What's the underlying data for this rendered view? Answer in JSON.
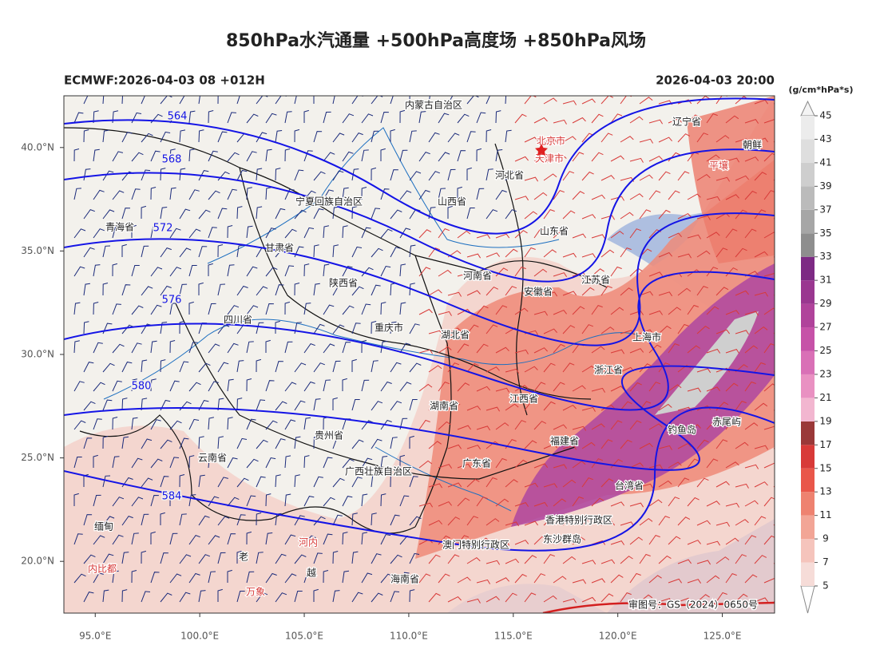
{
  "header": {
    "title": "850hPa水汽通量 +500hPa高度场 +850hPa风场",
    "run": "ECMWF:2026-04-03 08 +012H",
    "valid": "2026-04-03 20:00",
    "unit": "(g/cm*hPa*s)",
    "footer": "审图号：GS（2024）0650号"
  },
  "axes": {
    "lon_lim": [
      93.5,
      127.5
    ],
    "lat_lim": [
      17.5,
      42.5
    ],
    "lon_ticks": [
      {
        "value": 95,
        "label": "95.0°E"
      },
      {
        "value": 100,
        "label": "100.0°E"
      },
      {
        "value": 105,
        "label": "105.0°E"
      },
      {
        "value": 110,
        "label": "110.0°E"
      },
      {
        "value": 115,
        "label": "115.0°E"
      },
      {
        "value": 120,
        "label": "120.0°E"
      },
      {
        "value": 125,
        "label": "125.0°E"
      }
    ],
    "lat_ticks": [
      {
        "value": 40,
        "label": "40.0°N"
      },
      {
        "value": 35,
        "label": "35.0°N"
      },
      {
        "value": 30,
        "label": "30.0°N"
      },
      {
        "value": 25,
        "label": "25.0°N"
      },
      {
        "value": 20,
        "label": "20.0°N"
      }
    ]
  },
  "colorbar": {
    "levels": [
      5,
      7,
      9,
      11,
      13,
      15,
      17,
      19,
      21,
      23,
      25,
      27,
      29,
      31,
      33,
      35,
      37,
      39,
      41,
      43,
      45
    ],
    "colors": [
      "#f6dcd8",
      "#f5c4bc",
      "#f2a596",
      "#ee8270",
      "#e9574a",
      "#d83a38",
      "#9a3838",
      "#f2b6d0",
      "#e991c2",
      "#d970b6",
      "#c652a8",
      "#b0439b",
      "#9a3790",
      "#7d2a84",
      "#8e8e8e",
      "#a6a6a6",
      "#bbbbbb",
      "#cecece",
      "#dedede",
      "#ececec"
    ]
  },
  "contours": [
    564,
    568,
    572,
    576,
    580,
    584
  ],
  "places": [
    "内蒙古自治区",
    "辽宁省",
    "北京市",
    "天津市",
    "河北省",
    "朝鲜",
    "宁夏回族自治区",
    "山西省",
    "山东省",
    "青海省",
    "甘肃省",
    "陕西省",
    "河南省",
    "江苏省",
    "安徽省",
    "四川省",
    "重庆市",
    "湖北省",
    "上海市",
    "浙江省",
    "江西省",
    "湖南省",
    "福建省",
    "钓鱼岛",
    "赤尾屿",
    "贵州省",
    "云南省",
    "广东省",
    "广西壮族自治区",
    "台湾省",
    "香港特别行政区",
    "缅甸",
    "澳门特别行政区",
    "东沙群岛",
    "老",
    "河内",
    "越",
    "内比都",
    "海南省",
    "万象",
    "平壤"
  ]
}
